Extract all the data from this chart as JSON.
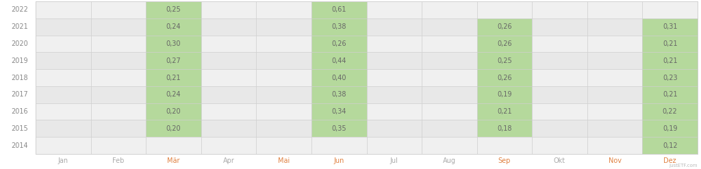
{
  "years": [
    "2022",
    "2021",
    "2020",
    "2019",
    "2018",
    "2017",
    "2016",
    "2015",
    "2014"
  ],
  "months": [
    "Jan",
    "Feb",
    "Mär",
    "Apr",
    "Mai",
    "Jun",
    "Jul",
    "Aug",
    "Sep",
    "Okt",
    "Nov",
    "Dez"
  ],
  "highlighted_months": [
    "Mär",
    "Mai",
    "Jun",
    "Sep",
    "Nov",
    "Dez"
  ],
  "data": {
    "2022": {
      "Mär": 0.25,
      "Jun": 0.61
    },
    "2021": {
      "Mär": 0.24,
      "Jun": 0.38,
      "Sep": 0.26,
      "Dez": 0.31
    },
    "2020": {
      "Mär": 0.3,
      "Jun": 0.26,
      "Sep": 0.26,
      "Dez": 0.21
    },
    "2019": {
      "Mär": 0.27,
      "Jun": 0.44,
      "Sep": 0.25,
      "Dez": 0.21
    },
    "2018": {
      "Mär": 0.21,
      "Jun": 0.4,
      "Sep": 0.26,
      "Dez": 0.23
    },
    "2017": {
      "Mär": 0.24,
      "Jun": 0.38,
      "Sep": 0.19,
      "Dez": 0.21
    },
    "2016": {
      "Mär": 0.2,
      "Jun": 0.34,
      "Sep": 0.21,
      "Dez": 0.22
    },
    "2015": {
      "Mär": 0.2,
      "Jun": 0.35,
      "Sep": 0.18,
      "Dez": 0.19
    },
    "2014": {
      "Dez": 0.12
    }
  },
  "cell_bg_green": "#b5d99c",
  "cell_bg_white": "#f0f0f0",
  "cell_bg_alt": "#e8e8e8",
  "grid_color": "#cccccc",
  "text_color_year": "#888888",
  "text_color_month_normal": "#aaaaaa",
  "text_color_month_highlight": "#e08040",
  "text_color_value": "#666666",
  "bg_color": "#ffffff",
  "watermark": "justETF.com",
  "watermark_color": "#bbbbbb",
  "fig_width": 10.24,
  "fig_height": 2.47,
  "dpi": 100
}
